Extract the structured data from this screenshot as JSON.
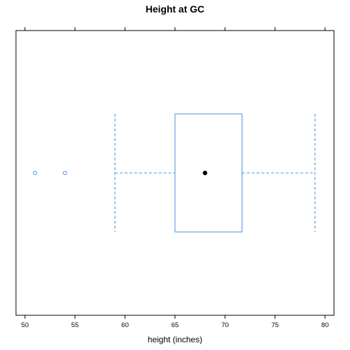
{
  "chart_data": {
    "type": "box",
    "title": "Height at GC",
    "xlabel": "height (inches)",
    "ylabel": "",
    "xlim": [
      49.1,
      80.9
    ],
    "ticks": [
      50,
      55,
      60,
      65,
      70,
      75,
      80
    ],
    "tick_labels": [
      "50",
      "55",
      "60",
      "65",
      "70",
      "75",
      "80"
    ],
    "box": {
      "whisker_low": 59,
      "q1": 65,
      "median": 68,
      "q3": 71.7,
      "whisker_high": 79
    },
    "outliers": [
      51,
      54
    ],
    "grid": false,
    "colors": {
      "box": "#4a90d9",
      "median": "#000000",
      "axis": "#000000"
    }
  }
}
